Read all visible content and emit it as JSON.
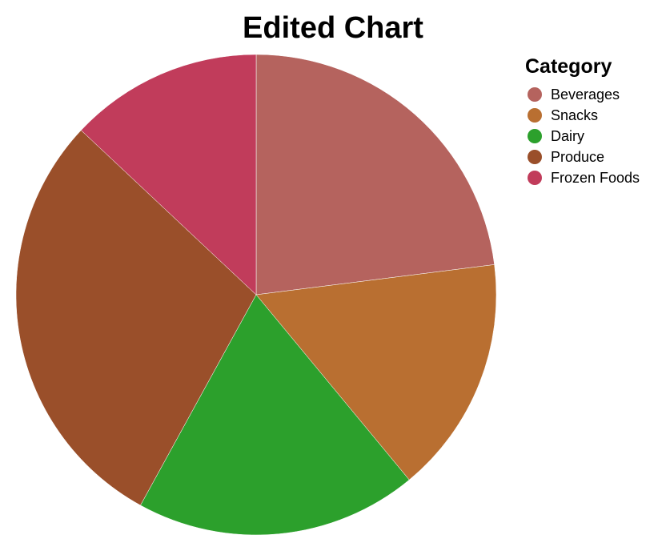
{
  "chart_data": {
    "type": "pie",
    "title": "Edited Chart",
    "legend_title": "Category",
    "legend_position": "top-right",
    "categories": [
      "Beverages",
      "Snacks",
      "Dairy",
      "Produce",
      "Frozen Foods"
    ],
    "values": [
      23,
      16,
      19,
      29,
      13
    ],
    "colors": [
      "#b5635e",
      "#b96f31",
      "#2ca02c",
      "#9a4f2a",
      "#c13c5b"
    ],
    "start_angle_deg": 0,
    "direction": "clockwise"
  }
}
